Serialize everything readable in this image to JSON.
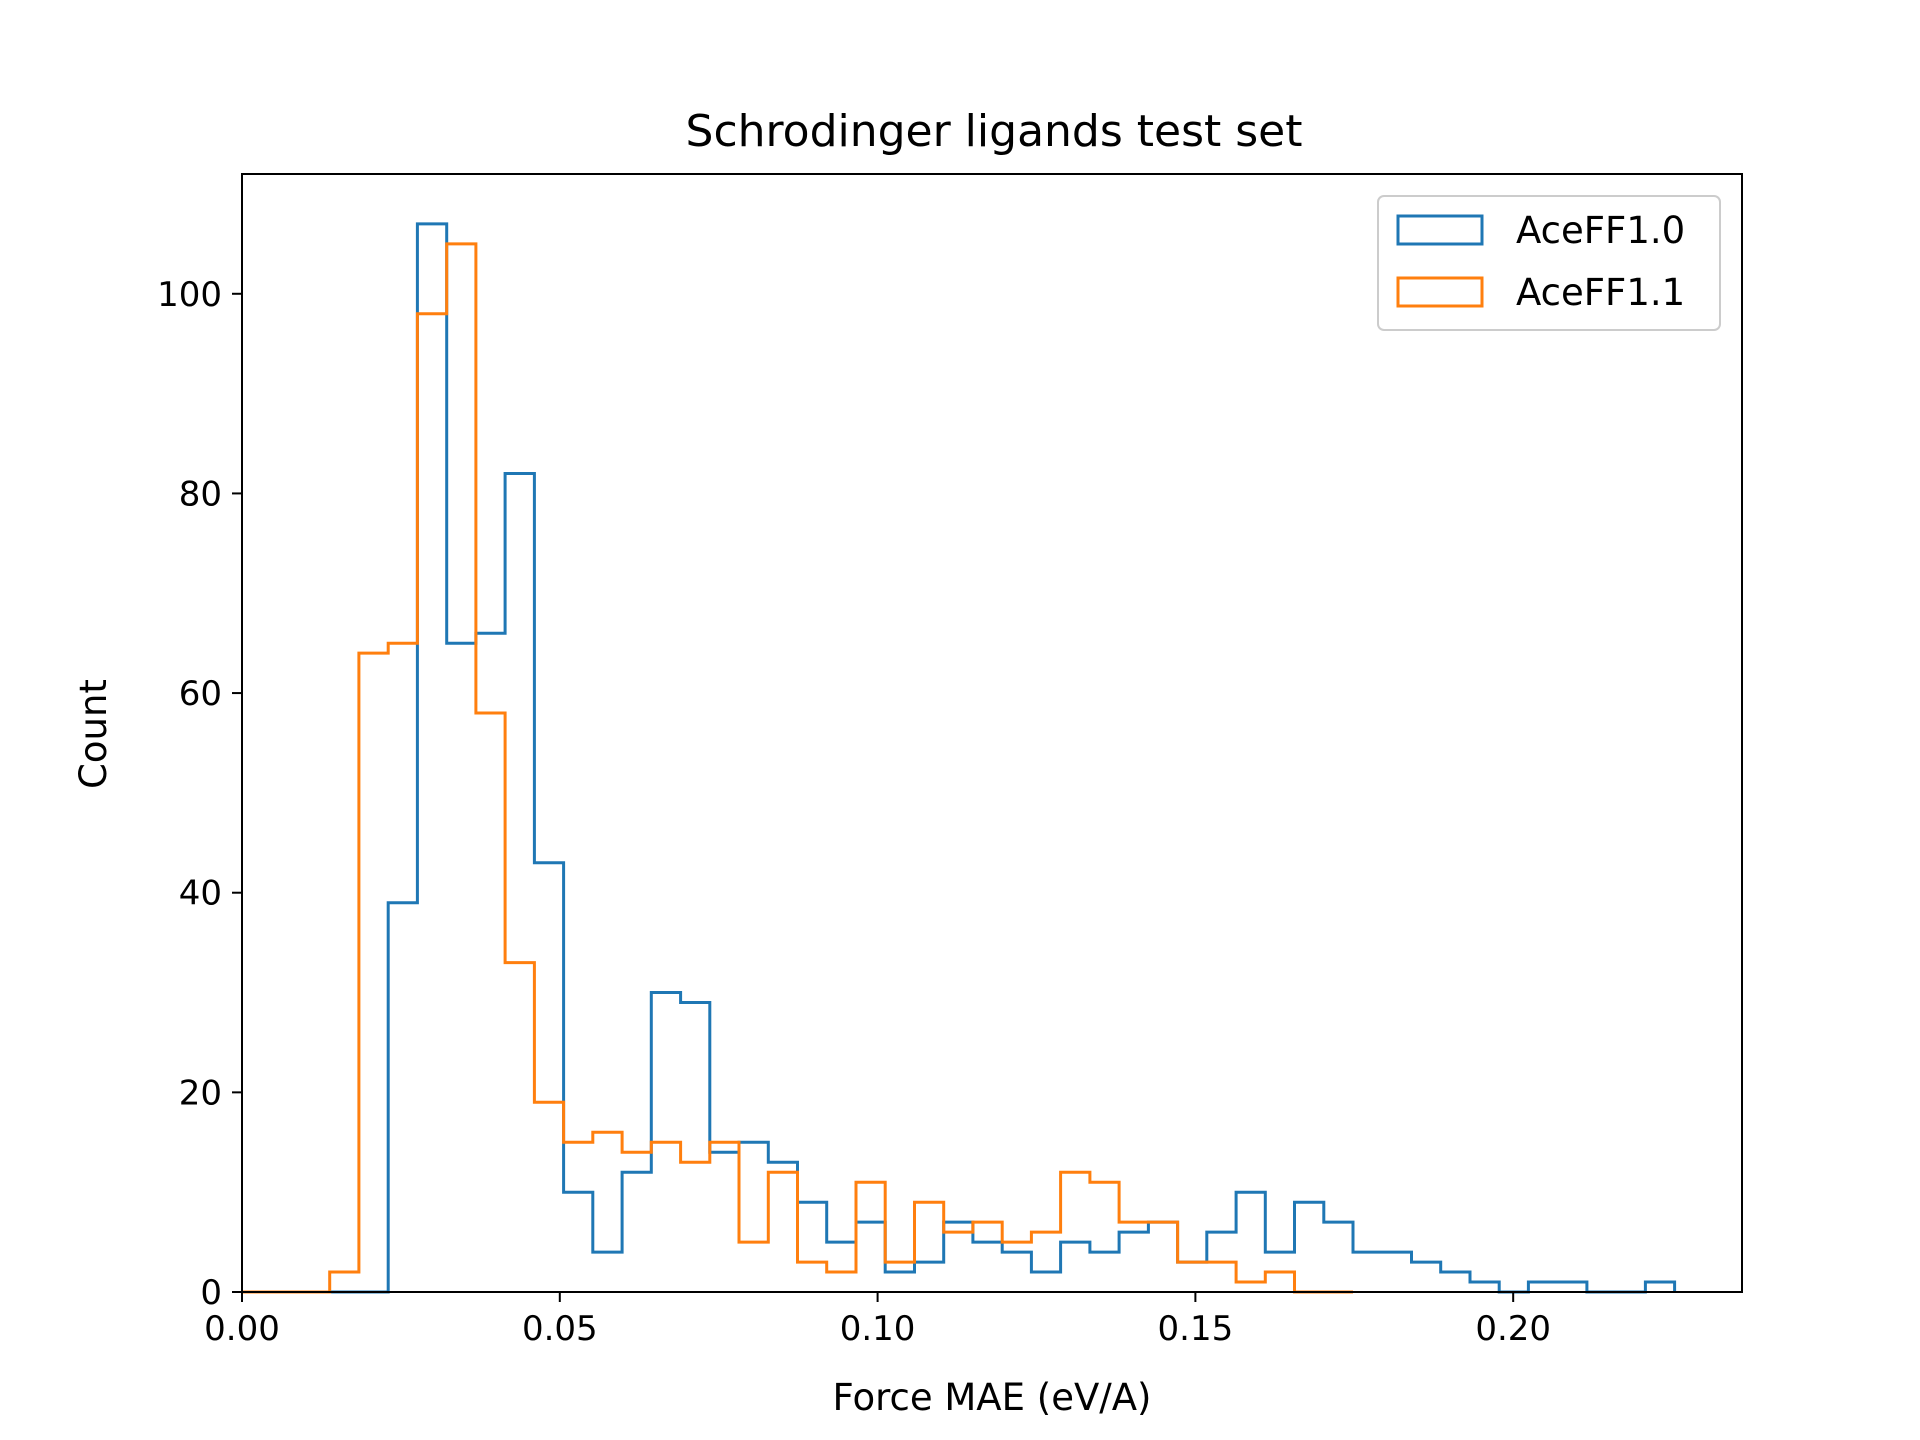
{
  "chart_data": {
    "type": "histogram-step",
    "title": "Schrodinger ligands test set",
    "xlabel": "Force MAE (eV/A)",
    "ylabel": "Count",
    "xlim": [
      0.0,
      0.236
    ],
    "ylim": [
      0,
      112
    ],
    "xticks": [
      0.0,
      0.05,
      0.1,
      0.15,
      0.2
    ],
    "xtick_labels": [
      "0.00",
      "0.05",
      "0.10",
      "0.15",
      "0.20"
    ],
    "yticks": [
      0,
      20,
      40,
      60,
      80,
      100
    ],
    "ytick_labels": [
      "0",
      "20",
      "40",
      "60",
      "80",
      "100"
    ],
    "grid": false,
    "legend_position": "top-right",
    "series": [
      {
        "name": "AceFF1.0",
        "color": "#1f77b4",
        "bin_start": 0.0,
        "bin_width": 0.0046,
        "counts": [
          0,
          0,
          0,
          0,
          0,
          39,
          107,
          65,
          66,
          82,
          43,
          10,
          4,
          12,
          30,
          29,
          14,
          15,
          13,
          9,
          5,
          7,
          2,
          3,
          7,
          5,
          4,
          2,
          5,
          4,
          6,
          7,
          3,
          6,
          10,
          4,
          9,
          7,
          4,
          4,
          3,
          2,
          1,
          0,
          1,
          1,
          0,
          0,
          1
        ]
      },
      {
        "name": "AceFF1.1",
        "color": "#ff7f0e",
        "bin_start": 0.0,
        "bin_width": 0.0046,
        "counts": [
          0,
          0,
          0,
          2,
          64,
          65,
          98,
          105,
          58,
          33,
          19,
          15,
          16,
          14,
          15,
          13,
          15,
          5,
          12,
          3,
          2,
          11,
          3,
          9,
          6,
          7,
          5,
          6,
          12,
          11,
          7,
          7,
          3,
          3,
          1,
          2,
          0,
          0
        ]
      }
    ]
  }
}
